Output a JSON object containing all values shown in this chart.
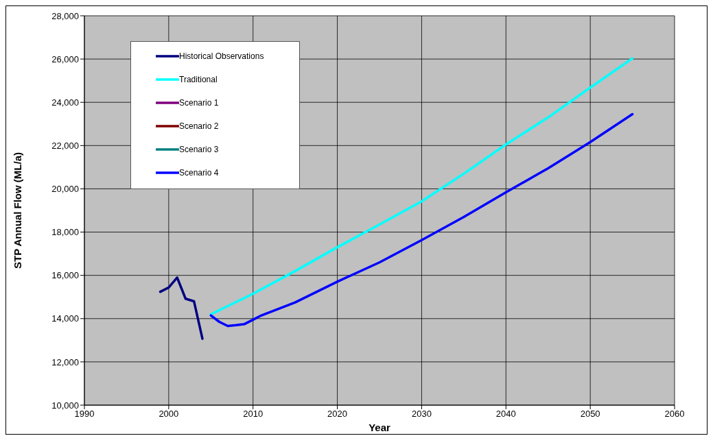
{
  "chart_data": {
    "type": "line",
    "xlabel": "Year",
    "ylabel": "STP Annual Flow (ML/a)",
    "xlim": [
      1990,
      2060
    ],
    "xticks": [
      1990,
      2000,
      2010,
      2020,
      2030,
      2040,
      2050,
      2060
    ],
    "ylim": [
      10000,
      28000
    ],
    "yticks": [
      {
        "value": 10000,
        "label": "10,000"
      },
      {
        "value": 12000,
        "label": "12,000"
      },
      {
        "value": 14000,
        "label": "14,000"
      },
      {
        "value": 16000,
        "label": "16,000"
      },
      {
        "value": 18000,
        "label": "18,000"
      },
      {
        "value": 20000,
        "label": "20,000"
      },
      {
        "value": 22000,
        "label": "22,000"
      },
      {
        "value": 24000,
        "label": "24,000"
      },
      {
        "value": 26000,
        "label": "26,000"
      },
      {
        "value": 28000,
        "label": "28,000"
      }
    ],
    "grid": true,
    "legend": "top left",
    "marker": "none",
    "line_style": "solid",
    "series": [
      {
        "name": "Historical Observations",
        "color": "#000080",
        "x": [
          1999,
          2000,
          2001,
          2002,
          2003,
          2004
        ],
        "values": [
          15240,
          15440,
          15900,
          14920,
          14800,
          13070
        ]
      },
      {
        "name": "Traditional",
        "color": "#00ffff",
        "x": [
          2005,
          2010,
          2015,
          2020,
          2025,
          2030,
          2035,
          2040,
          2045,
          2050,
          2055
        ],
        "values": [
          14200,
          15150,
          16200,
          17300,
          18350,
          19420,
          20700,
          22050,
          23300,
          24680,
          26030
        ]
      },
      {
        "name": "Scenario 1",
        "color": "#800080"
      },
      {
        "name": "Scenario 2",
        "color": "#800000"
      },
      {
        "name": "Scenario 3",
        "color": "#008080"
      },
      {
        "name": "Scenario 4",
        "color": "#0000ff",
        "x": [
          2005,
          2006,
          2007,
          2008,
          2009,
          2010,
          2011,
          2015,
          2020,
          2025,
          2030,
          2035,
          2040,
          2045,
          2050,
          2055
        ],
        "values": [
          14150,
          13850,
          13660,
          13700,
          13750,
          13950,
          14150,
          14750,
          15710,
          16600,
          17630,
          18700,
          19840,
          20950,
          22160,
          23450
        ]
      }
    ]
  }
}
